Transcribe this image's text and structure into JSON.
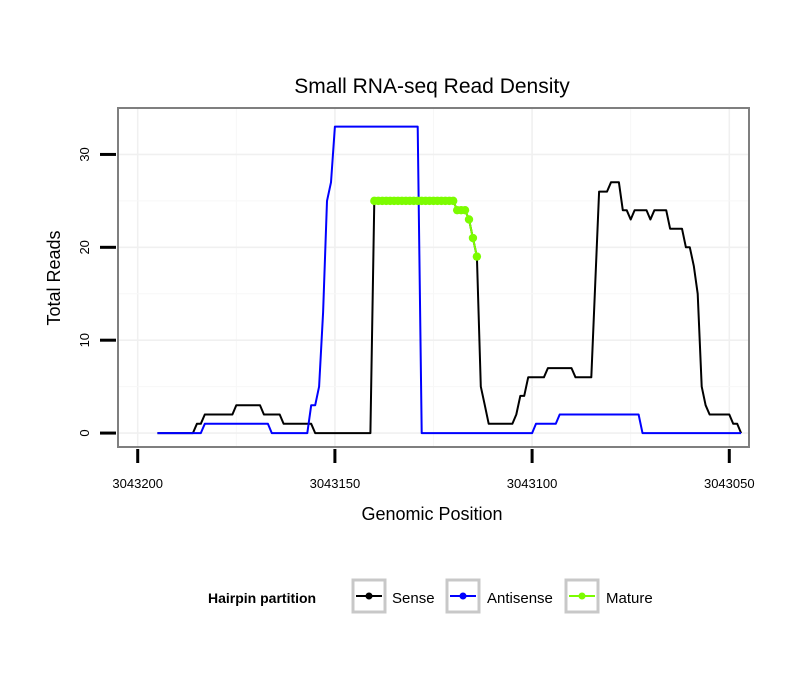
{
  "chart_data": {
    "type": "line",
    "title": "Small RNA-seq Read Density",
    "xlabel": "Genomic Position",
    "ylabel": "Total Reads",
    "xlim": [
      3043205,
      3043045
    ],
    "ylim": [
      -1.5,
      35
    ],
    "x_ticks": [
      3043200,
      3043150,
      3043100,
      3043050
    ],
    "x_tick_labels": [
      "3043200",
      "3043150",
      "3043100",
      "3043050"
    ],
    "y_ticks": [
      0,
      10,
      20,
      30
    ],
    "y_tick_labels": [
      "0",
      "10",
      "20",
      "30"
    ],
    "grid": true,
    "legend": {
      "title": "Hairpin partition",
      "position": "bottom",
      "entries": [
        "Sense",
        "Antisense",
        "Mature"
      ]
    },
    "series": [
      {
        "name": "Sense",
        "color": "#000000",
        "points": [
          [
            3043195,
            0
          ],
          [
            3043186,
            0
          ],
          [
            3043185,
            1
          ],
          [
            3043184,
            1
          ],
          [
            3043183,
            2
          ],
          [
            3043176,
            2
          ],
          [
            3043175,
            3
          ],
          [
            3043169,
            3
          ],
          [
            3043168,
            2
          ],
          [
            3043164,
            2
          ],
          [
            3043163,
            1
          ],
          [
            3043156,
            1
          ],
          [
            3043155,
            0
          ],
          [
            3043141,
            0
          ],
          [
            3043140,
            25
          ],
          [
            3043139,
            25
          ],
          [
            3043120,
            25
          ],
          [
            3043119,
            24
          ],
          [
            3043117,
            24
          ],
          [
            3043116,
            23
          ],
          [
            3043115,
            21
          ],
          [
            3043114,
            19
          ],
          [
            3043113,
            5
          ],
          [
            3043112,
            3
          ],
          [
            3043111,
            1
          ],
          [
            3043105,
            1
          ],
          [
            3043104,
            2
          ],
          [
            3043103,
            4
          ],
          [
            3043102,
            4
          ],
          [
            3043101,
            6
          ],
          [
            3043097,
            6
          ],
          [
            3043096,
            7
          ],
          [
            3043090,
            7
          ],
          [
            3043089,
            6
          ],
          [
            3043085,
            6
          ],
          [
            3043084,
            16
          ],
          [
            3043083,
            26
          ],
          [
            3043081,
            26
          ],
          [
            3043080,
            27
          ],
          [
            3043078,
            27
          ],
          [
            3043077,
            24
          ],
          [
            3043076,
            24
          ],
          [
            3043075,
            23
          ],
          [
            3043074,
            24
          ],
          [
            3043071,
            24
          ],
          [
            3043070,
            23
          ],
          [
            3043069,
            24
          ],
          [
            3043066,
            24
          ],
          [
            3043065,
            22
          ],
          [
            3043062,
            22
          ],
          [
            3043061,
            20
          ],
          [
            3043060,
            20
          ],
          [
            3043059,
            18
          ],
          [
            3043058,
            15
          ],
          [
            3043057,
            5
          ],
          [
            3043056,
            3
          ],
          [
            3043055,
            2
          ],
          [
            3043050,
            2
          ],
          [
            3043049,
            1
          ],
          [
            3043048,
            1
          ],
          [
            3043047,
            0
          ]
        ]
      },
      {
        "name": "Antisense",
        "color": "#0000ff",
        "points": [
          [
            3043195,
            0
          ],
          [
            3043184,
            0
          ],
          [
            3043183,
            1
          ],
          [
            3043167,
            1
          ],
          [
            3043166,
            0
          ],
          [
            3043157,
            0
          ],
          [
            3043156,
            3
          ],
          [
            3043155,
            3
          ],
          [
            3043154,
            5
          ],
          [
            3043153,
            13
          ],
          [
            3043152,
            25
          ],
          [
            3043151,
            27
          ],
          [
            3043150,
            33
          ],
          [
            3043129,
            33
          ],
          [
            3043128,
            0
          ],
          [
            3043100,
            0
          ],
          [
            3043099,
            1
          ],
          [
            3043094,
            1
          ],
          [
            3043093,
            2
          ],
          [
            3043073,
            2
          ],
          [
            3043072,
            0
          ],
          [
            3043047,
            0
          ]
        ]
      },
      {
        "name": "Mature",
        "color": "#7cfc00",
        "points": [
          [
            3043140,
            25
          ],
          [
            3043139,
            25
          ],
          [
            3043138,
            25
          ],
          [
            3043137,
            25
          ],
          [
            3043136,
            25
          ],
          [
            3043135,
            25
          ],
          [
            3043134,
            25
          ],
          [
            3043133,
            25
          ],
          [
            3043132,
            25
          ],
          [
            3043131,
            25
          ],
          [
            3043130,
            25
          ],
          [
            3043129,
            25
          ],
          [
            3043128,
            25
          ],
          [
            3043127,
            25
          ],
          [
            3043126,
            25
          ],
          [
            3043125,
            25
          ],
          [
            3043124,
            25
          ],
          [
            3043123,
            25
          ],
          [
            3043122,
            25
          ],
          [
            3043121,
            25
          ],
          [
            3043120,
            25
          ],
          [
            3043119,
            24
          ],
          [
            3043118,
            24
          ],
          [
            3043117,
            24
          ],
          [
            3043116,
            23
          ],
          [
            3043115,
            21
          ],
          [
            3043114,
            19
          ]
        ]
      }
    ]
  }
}
